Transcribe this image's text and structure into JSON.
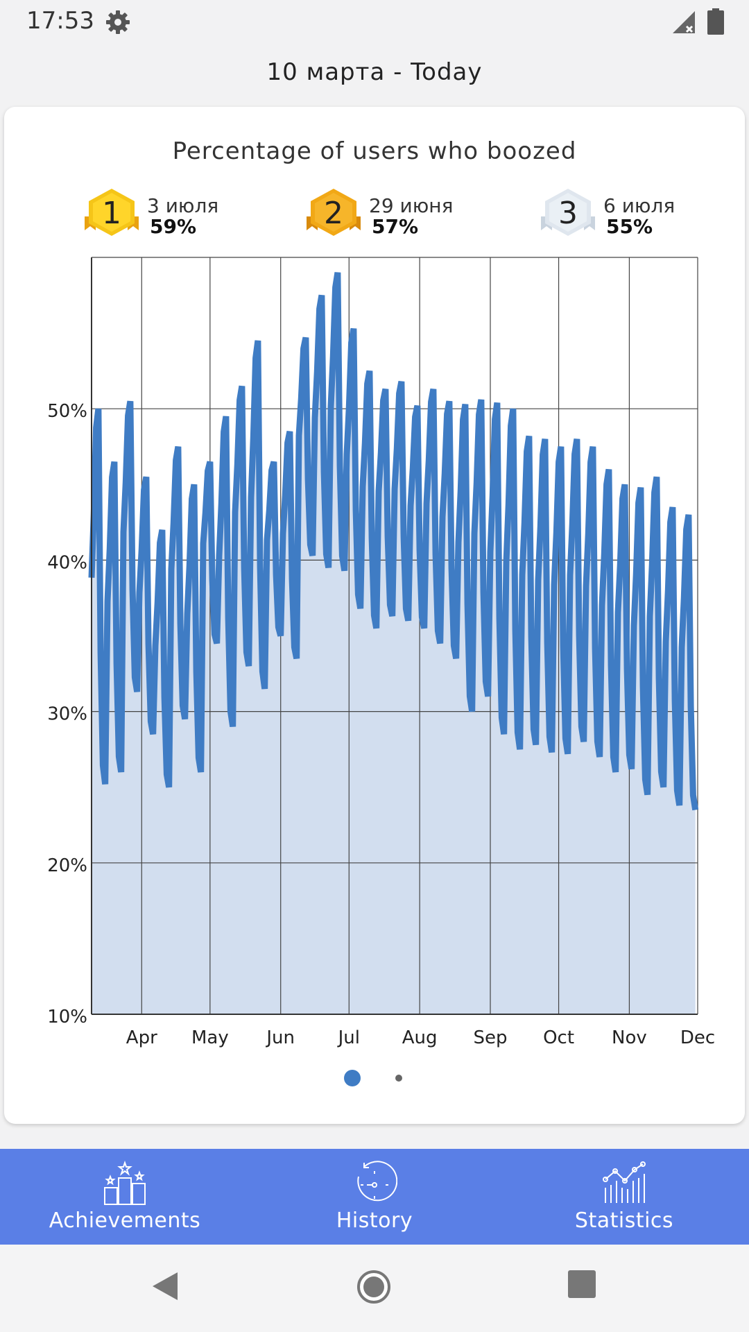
{
  "status_bar": {
    "time": "17:53",
    "icons": [
      "settings-gear-icon",
      "signal-icon",
      "battery-icon"
    ]
  },
  "date_range": "10 марта - Today",
  "card": {
    "title": "Percentage of users who boozed",
    "top3": [
      {
        "rank": "1",
        "date": "3 июля",
        "percent": "59%",
        "color": "#f5c518"
      },
      {
        "rank": "2",
        "date": "29 июня",
        "percent": "57%",
        "color": "#f1a816"
      },
      {
        "rank": "3",
        "date": "6 июля",
        "percent": "55%",
        "color": "#dfe6ee"
      }
    ]
  },
  "chart_data": {
    "type": "area",
    "title": "Percentage of users who boozed",
    "xlabel": "",
    "ylabel": "",
    "ylim": [
      10,
      60
    ],
    "y_ticks": [
      "10%",
      "20%",
      "30%",
      "40%",
      "50%"
    ],
    "x_ticks": [
      "Apr",
      "May",
      "Jun",
      "Jul",
      "Aug",
      "Sep",
      "Oct",
      "Nov",
      "Dec"
    ],
    "x_range": [
      "2020-03-10",
      "2020-12-01"
    ],
    "grid": true,
    "line_color": "#3f7cc4",
    "fill_color": "#d2deef",
    "weekly_series": {
      "week_start": [
        "03-10",
        "03-17",
        "03-24",
        "03-31",
        "04-07",
        "04-14",
        "04-21",
        "04-28",
        "05-05",
        "05-12",
        "05-19",
        "05-26",
        "06-02",
        "06-09",
        "06-16",
        "06-23",
        "06-30",
        "07-07",
        "07-14",
        "07-21",
        "07-28",
        "08-04",
        "08-11",
        "08-18",
        "08-25",
        "09-01",
        "09-08",
        "09-15",
        "09-22",
        "09-29",
        "10-06",
        "10-13",
        "10-20",
        "10-27",
        "11-03",
        "11-10",
        "11-17",
        "11-24"
      ],
      "peak": [
        50,
        46.5,
        50.5,
        45.5,
        42,
        47.5,
        45,
        46.5,
        49.5,
        51.5,
        54.5,
        46.5,
        48.5,
        54.7,
        57.5,
        59,
        55.3,
        52.5,
        51.3,
        51.8,
        50.2,
        51.3,
        50.5,
        50.3,
        50.6,
        50.4,
        50,
        48.2,
        48,
        47.5,
        48,
        47.5,
        46,
        45,
        44.8,
        45.5,
        43.5,
        43
      ],
      "low": [
        25.2,
        26,
        31.3,
        28.5,
        25,
        29.5,
        26,
        34.5,
        29,
        33,
        31.5,
        35,
        33.5,
        40.3,
        39.5,
        39.3,
        36.8,
        35.5,
        36.3,
        36,
        35.5,
        34.5,
        33.5,
        30,
        31,
        28.5,
        27.5,
        27.8,
        27.3,
        27.2,
        28,
        27,
        26,
        26.2,
        24.5,
        25,
        23.8,
        23.5
      ]
    }
  },
  "pager": {
    "pages": 2,
    "active": 1
  },
  "bottom_nav": [
    {
      "label": "Achievements",
      "icon": "podium-stars-icon"
    },
    {
      "label": "History",
      "icon": "history-clock-icon"
    },
    {
      "label": "Statistics",
      "icon": "statistics-chart-icon"
    }
  ],
  "system_nav": [
    "back-icon",
    "home-icon",
    "recents-icon"
  ]
}
